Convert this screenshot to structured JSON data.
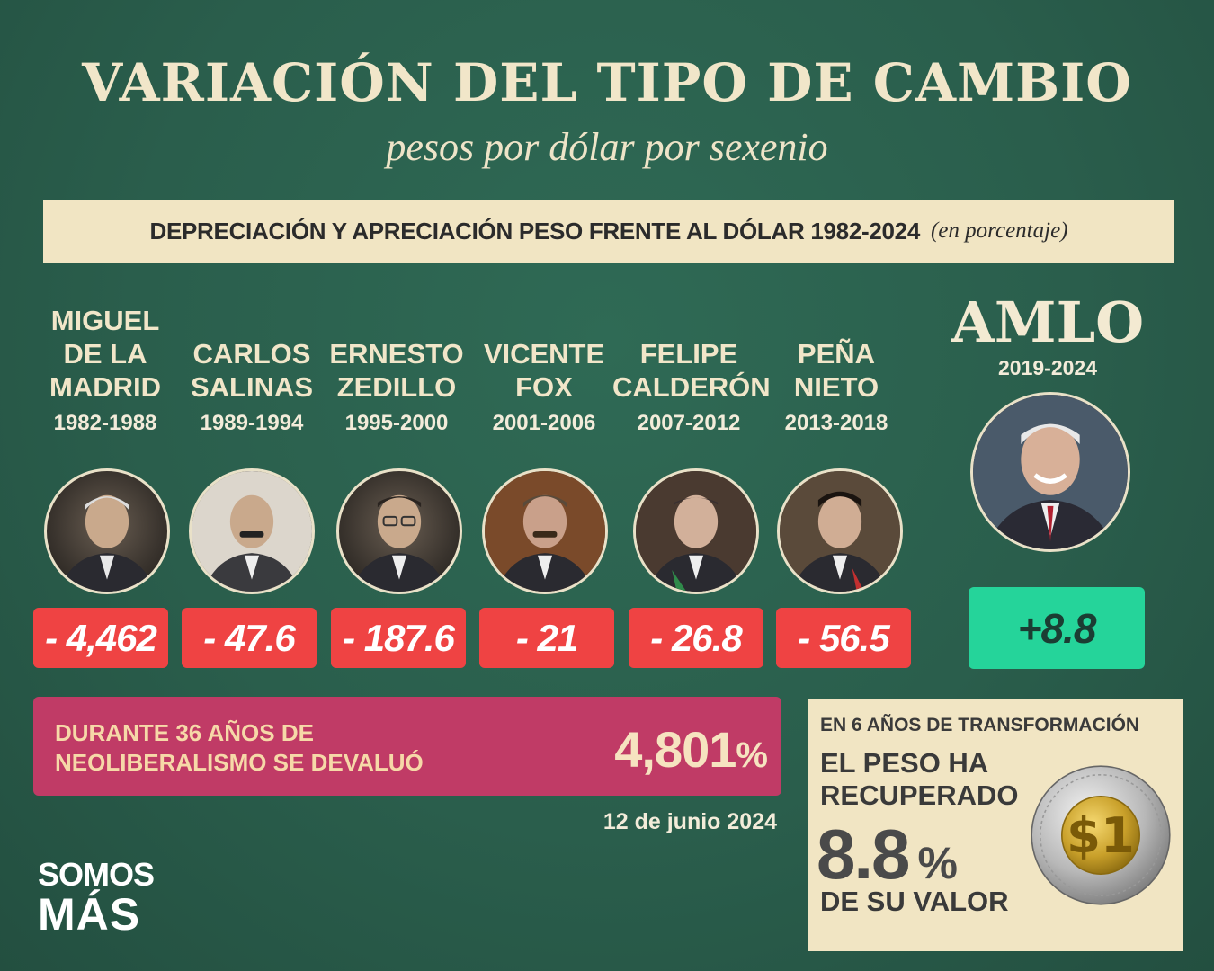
{
  "title": "VARIACIÓN DEL TIPO DE CAMBIO",
  "subtitle": "pesos por dólar por sexenio",
  "banner": {
    "main": "DEPRECIACIÓN Y APRECIACIÓN PESO FRENTE AL DÓLAR 1982-2024",
    "note": "(en porcentaje)"
  },
  "presidents": [
    {
      "name": "MIGUEL\nDE LA\nMADRID",
      "years": "1982-1988",
      "value": "- 4,462"
    },
    {
      "name": "CARLOS\nSALINAS",
      "years": "1989-1994",
      "value": "- 47.6"
    },
    {
      "name": "ERNESTO\nZEDILLO",
      "years": "1995-2000",
      "value": "- 187.6"
    },
    {
      "name": "VICENTE\nFOX",
      "years": "2001-2006",
      "value": "- 21"
    },
    {
      "name": "FELIPE\nCALDERÓN",
      "years": "2007-2012",
      "value": "- 26.8"
    },
    {
      "name": "PEÑA\nNIETO",
      "years": "2013-2018",
      "value": "- 56.5"
    }
  ],
  "amlo": {
    "name": "AMLO",
    "years": "2019-2024",
    "value": "+8.8"
  },
  "devaluation": {
    "text": "DURANTE 36 AÑOS DE\nNEOLIBERALISMO SE DEVALUÓ",
    "value": "4,801",
    "unit": "%"
  },
  "date": "12 de junio 2024",
  "logo": {
    "line1": "SOMOS",
    "line2": "MÁS"
  },
  "recovery": {
    "head": "EN 6 AÑOS DE TRANSFORMACIÓN",
    "line1": "EL PESO HA\nRECUPERADO",
    "value": "8.8",
    "unit": "%",
    "line2": "DE SU VALOR"
  },
  "colors": {
    "background": "#2a5e4c",
    "cream": "#f1e5c3",
    "negative": "#ef4343",
    "positive": "#25d49a",
    "magenta": "#c03b66"
  }
}
